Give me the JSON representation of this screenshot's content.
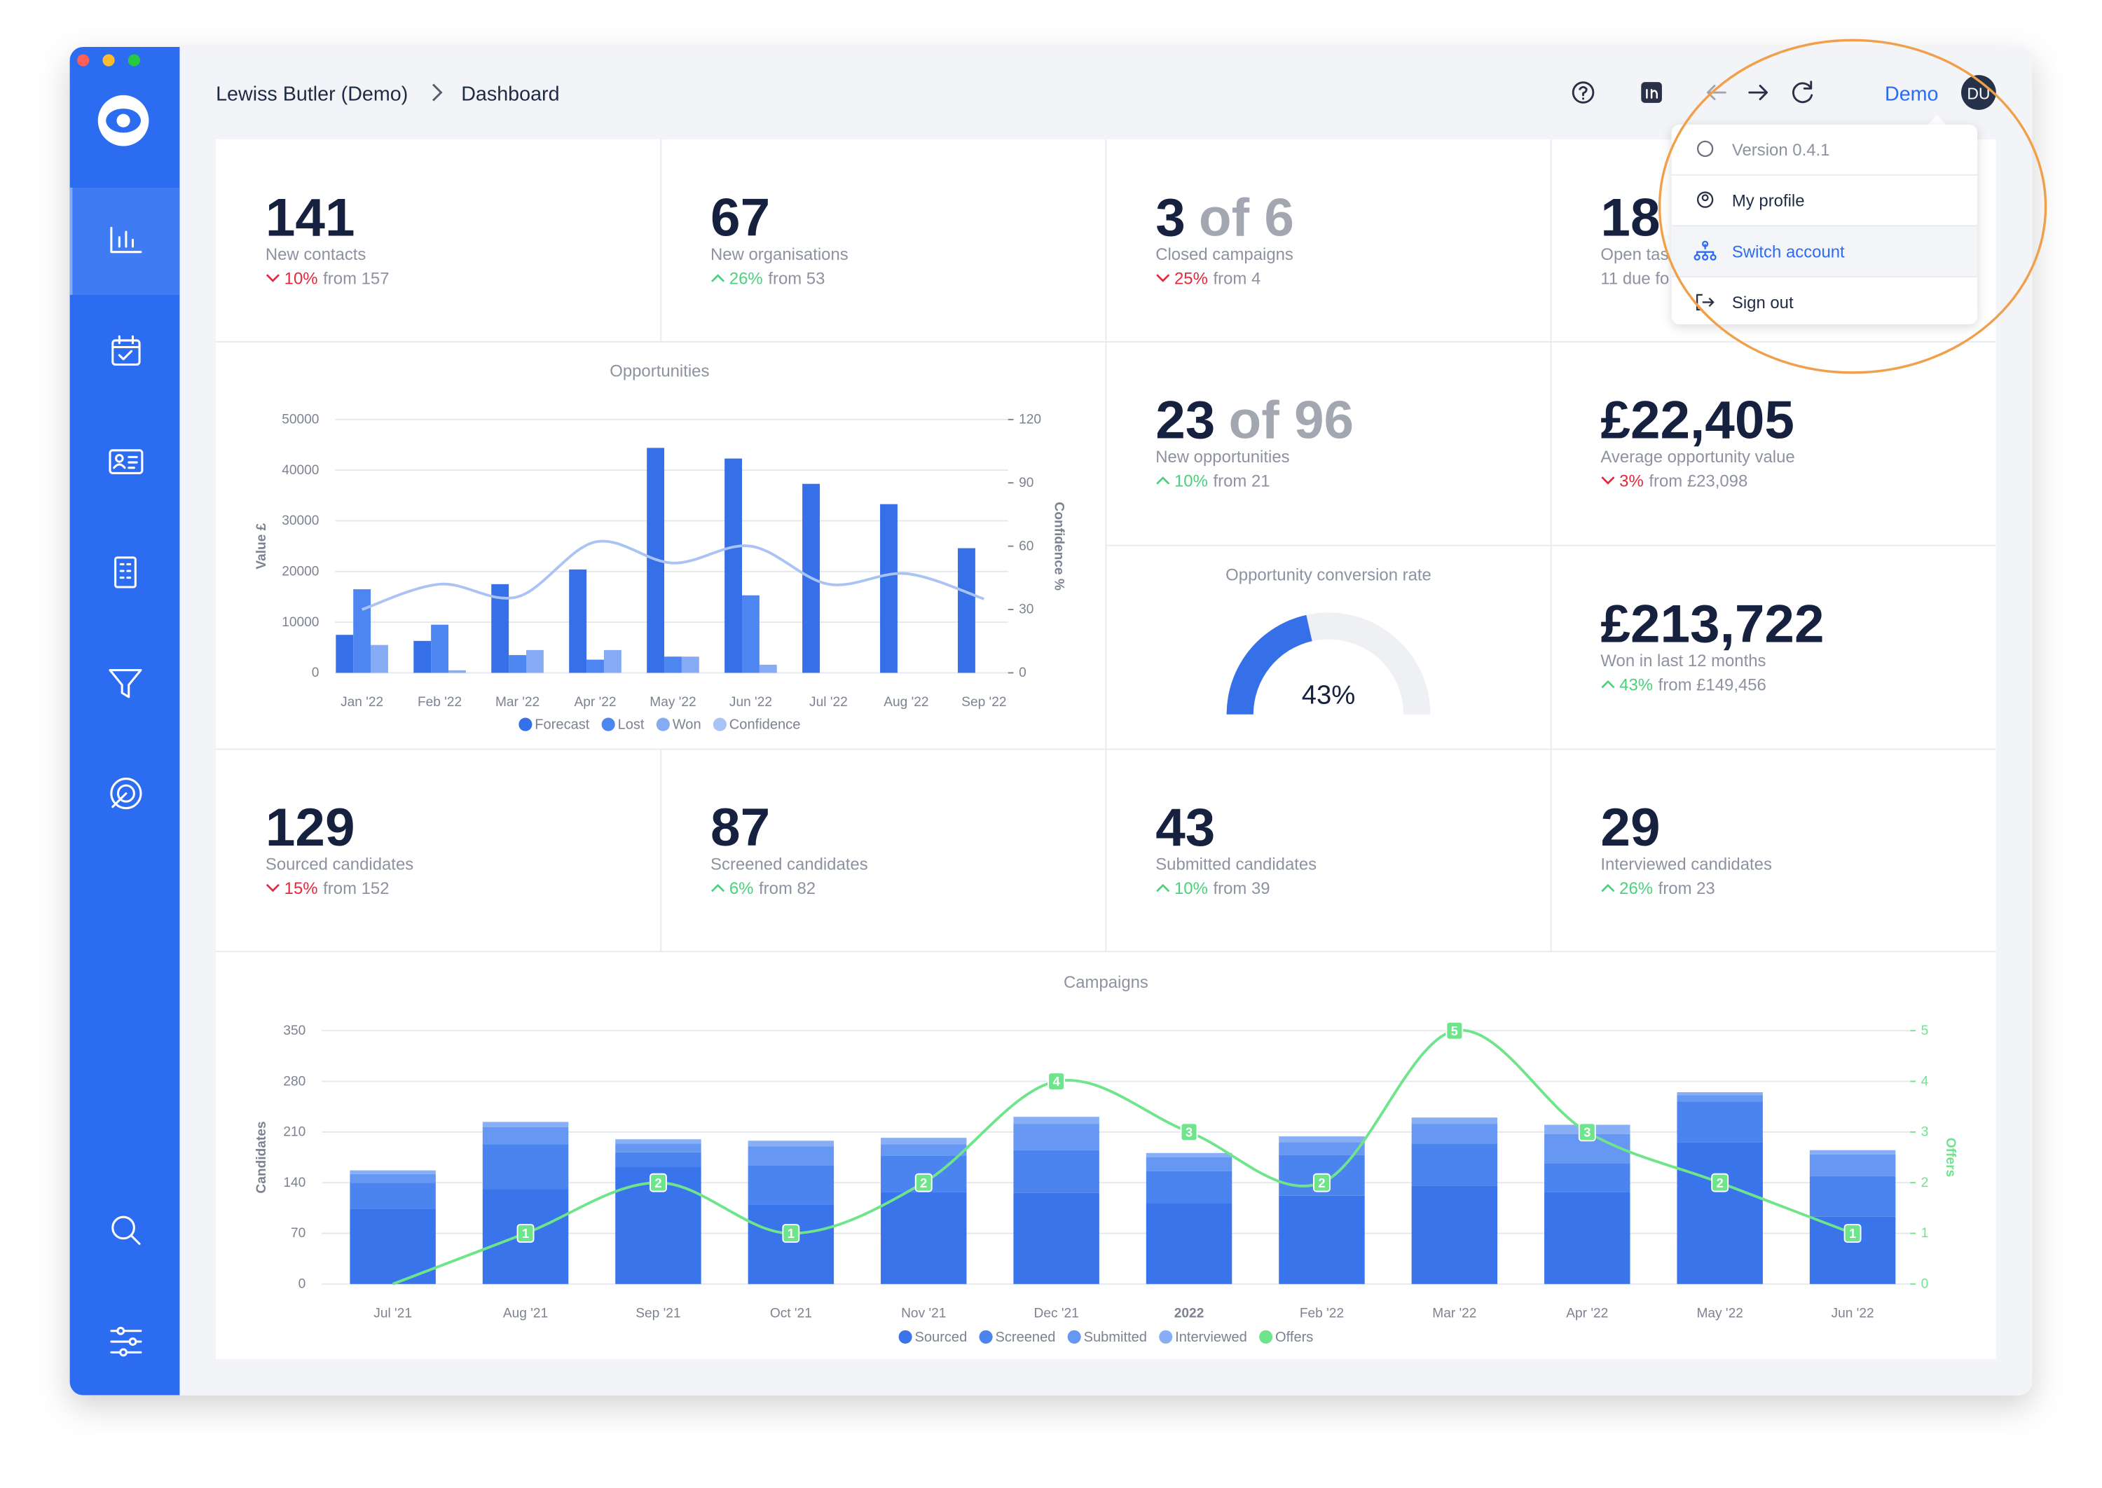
{
  "breadcrumb": {
    "account": "Lewiss Butler (Demo)",
    "page": "Dashboard"
  },
  "user": {
    "name": "Demo",
    "initials": "DU"
  },
  "menu": {
    "version": "Version 0.4.1",
    "items": [
      "My profile",
      "Switch account",
      "Sign out"
    ]
  },
  "kpis": [
    {
      "value": "141",
      "label": "New contacts",
      "change": "10%",
      "from": "from 157",
      "trend": "down"
    },
    {
      "value": "67",
      "label": "New organisations",
      "change": "26%",
      "from": "from 53",
      "trend": "up"
    },
    {
      "value": "3",
      "total": "of 6",
      "label": "Closed campaigns",
      "change": "25%",
      "from": "from 4",
      "trend": "down"
    },
    {
      "value": "18",
      "label": "Open tas",
      "note": "11 due fo"
    },
    {
      "value": "23",
      "total": "of 96",
      "label": "New opportunities",
      "change": "10%",
      "from": "from 21",
      "trend": "up"
    },
    {
      "value": "£22,405",
      "label": "Average opportunity value",
      "change": "3%",
      "from": "from £23,098",
      "trend": "down"
    },
    {
      "value": "£213,722",
      "label": "Won in last 12 months",
      "change": "43%",
      "from": "from £149,456",
      "trend": "up"
    },
    {
      "value": "129",
      "label": "Sourced candidates",
      "change": "15%",
      "from": "from 152",
      "trend": "down"
    },
    {
      "value": "87",
      "label": "Screened candidates",
      "change": "6%",
      "from": "from 82",
      "trend": "up"
    },
    {
      "value": "43",
      "label": "Submitted candidates",
      "change": "10%",
      "from": "from 39",
      "trend": "up"
    },
    {
      "value": "29",
      "label": "Interviewed candidates",
      "change": "26%",
      "from": "from 23",
      "trend": "up"
    }
  ],
  "chart_data": [
    {
      "type": "bar",
      "title": "Opportunities",
      "categories": [
        "Jan '22",
        "Feb '22",
        "Mar '22",
        "Apr '22",
        "May '22",
        "Jun '22",
        "Jul '22",
        "Aug '22",
        "Sep '22"
      ],
      "series": [
        {
          "name": "Forecast",
          "color": "#3570e8",
          "values": [
            7500,
            6300,
            17500,
            20400,
            44400,
            42300,
            37300,
            33300,
            24600
          ]
        },
        {
          "name": "Lost",
          "color": "#4d86f1",
          "values": [
            16500,
            9500,
            3500,
            2600,
            3200,
            15300,
            0,
            0,
            0
          ]
        },
        {
          "name": "Won",
          "color": "#86abf4",
          "values": [
            5500,
            500,
            4500,
            4500,
            3200,
            1600,
            0,
            0,
            0
          ]
        },
        {
          "name": "Confidence",
          "color": "#a9c3f5",
          "type": "line",
          "axis": "y2",
          "values": [
            30,
            42,
            36,
            62,
            52,
            60,
            42,
            47,
            35
          ]
        }
      ],
      "ylabel": "Value £",
      "y2label": "Confidence %",
      "ylim": [
        0,
        50000
      ],
      "yticks": [
        0,
        10000,
        20000,
        30000,
        40000,
        50000
      ],
      "y2lim": [
        0,
        120
      ],
      "y2ticks": [
        0,
        30,
        60,
        90,
        120
      ],
      "grid": true
    },
    {
      "type": "gauge",
      "title": "Opportunity conversion rate",
      "values": [
        43
      ],
      "value_labels": [
        "43%"
      ],
      "ylim": [
        0,
        100
      ],
      "color": "#3570e8"
    },
    {
      "type": "bar",
      "stacked": true,
      "title": "Campaigns",
      "categories": [
        "Jul '21",
        "Aug '21",
        "Sep '21",
        "Oct '21",
        "Nov '21",
        "Dec '21",
        "2022",
        "Feb '22",
        "Mar '22",
        "Apr '22",
        "May '22",
        "Jun '22"
      ],
      "series": [
        {
          "name": "Sourced",
          "color": "#3a74ea",
          "values": [
            104,
            131,
            162,
            110,
            127,
            126,
            112,
            122,
            136,
            127,
            196,
            93
          ]
        },
        {
          "name": "Screened",
          "color": "#4c84ef",
          "values": [
            36,
            62,
            20,
            54,
            50,
            59,
            44,
            56,
            58,
            40,
            56,
            56
          ]
        },
        {
          "name": "Submitted",
          "color": "#6697f3",
          "values": [
            12,
            24,
            12,
            26,
            16,
            36,
            19,
            18,
            27,
            40,
            9,
            30
          ]
        },
        {
          "name": "Interviewed",
          "color": "#88aff6",
          "values": [
            5,
            7,
            6,
            8,
            9,
            10,
            6,
            8,
            9,
            13,
            4,
            6
          ]
        },
        {
          "name": "Offers",
          "color": "#6ee58a",
          "type": "line",
          "axis": "y2",
          "values": [
            0,
            1,
            2,
            1,
            2,
            4,
            3,
            2,
            5,
            3,
            2,
            1
          ]
        }
      ],
      "ylabel": "Candidates",
      "y2label": "Offers",
      "ylim": [
        0,
        350
      ],
      "yticks": [
        0,
        70,
        140,
        210,
        280,
        350
      ],
      "y2lim": [
        0,
        5
      ],
      "y2ticks": [
        0,
        1,
        2,
        3,
        4,
        5
      ],
      "grid": true,
      "data_labels": true
    }
  ]
}
